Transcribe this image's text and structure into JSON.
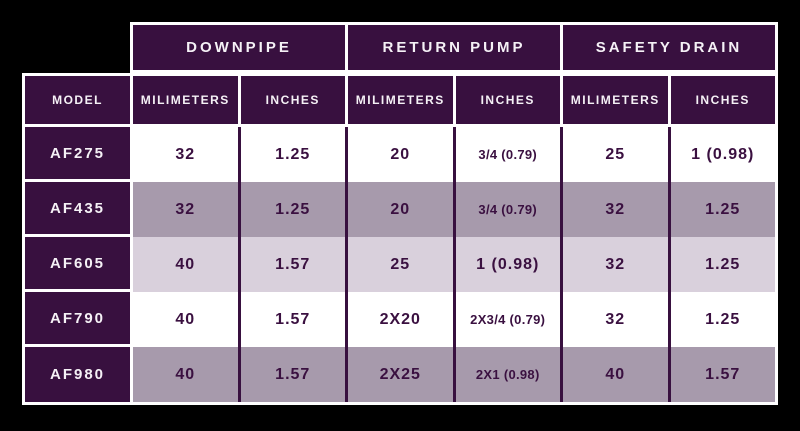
{
  "chart_data": {
    "type": "table",
    "column_groups": [
      "DOWNPIPE",
      "RETURN PUMP",
      "SAFETY DRAIN"
    ],
    "columns": [
      "MODEL",
      "MILIMETERS",
      "INCHES",
      "MILIMETERS",
      "INCHES",
      "MILIMETERS",
      "INCHES"
    ],
    "rows": [
      [
        "AF275",
        "32",
        "1.25",
        "20",
        "3/4 (0.79)",
        "25",
        "1 (0.98)"
      ],
      [
        "AF435",
        "32",
        "1.25",
        "20",
        "3/4 (0.79)",
        "32",
        "1.25"
      ],
      [
        "AF605",
        "40",
        "1.57",
        "25",
        "1 (0.98)",
        "32",
        "1.25"
      ],
      [
        "AF790",
        "40",
        "1.57",
        "2X20",
        "2X3/4 (0.79)",
        "32",
        "1.25"
      ],
      [
        "AF980",
        "40",
        "1.57",
        "2X25",
        "2X1 (0.98)",
        "40",
        "1.57"
      ]
    ]
  },
  "colors": {
    "background": "#000000",
    "header-purple": "#38103F",
    "header-text": "#F5F1F6",
    "border-white": "#FFFFFF",
    "row-white": "#FFFFFF",
    "row-medium": "#A79AAC",
    "row-light": "#D9D0DC",
    "data-text": "#3A1040"
  }
}
